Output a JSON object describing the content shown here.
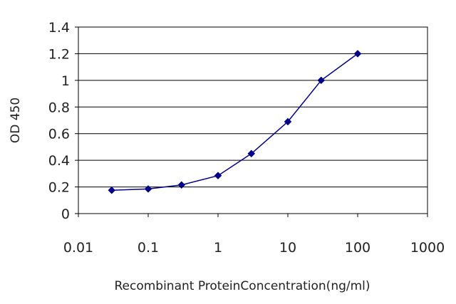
{
  "chart_data": {
    "type": "line",
    "title": "",
    "xlabel": "Recombinant ProteinConcentration(ng/ml)",
    "ylabel": "OD 450",
    "x_scale": "log",
    "xlim": [
      0.01,
      1000
    ],
    "ylim": [
      0,
      1.4
    ],
    "x_ticks": [
      "0.01",
      "0.1",
      "1",
      "10",
      "100",
      "1000"
    ],
    "y_ticks": [
      "0",
      "0.2",
      "0.4",
      "0.6",
      "0.8",
      "1",
      "1.2",
      "1.4"
    ],
    "grid": "horizontal",
    "legend": "none",
    "series": [
      {
        "color": "#00008b",
        "x": [
          0.03,
          0.1,
          0.3,
          1,
          3,
          10,
          30,
          100
        ],
        "y": [
          0.175,
          0.185,
          0.215,
          0.285,
          0.45,
          0.69,
          1.0,
          1.2
        ]
      }
    ]
  }
}
